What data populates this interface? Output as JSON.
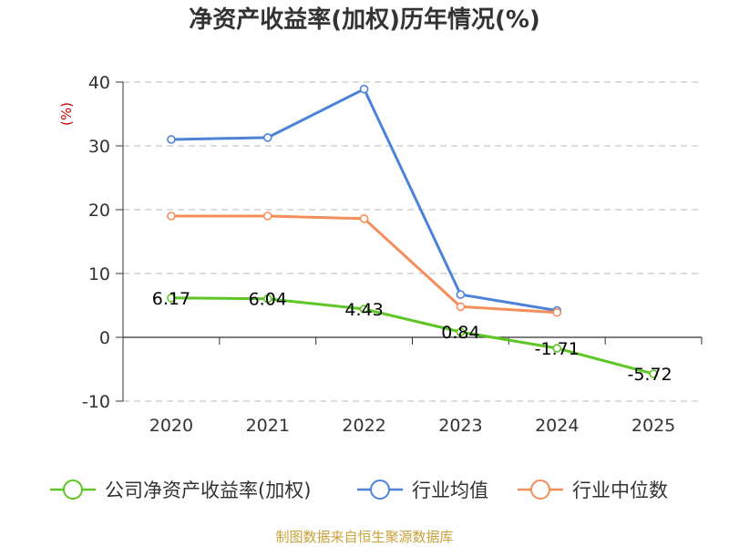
{
  "chart_data": {
    "type": "line",
    "title": "净资产收益率(加权)历年情况(%)",
    "ylabel": "(%)",
    "xlabel": "",
    "categories": [
      "2020",
      "2021",
      "2022",
      "2023",
      "2024",
      "2025"
    ],
    "ylim": [
      -10,
      40
    ],
    "yticks": [
      -10,
      0,
      10,
      20,
      30,
      40
    ],
    "grid": true,
    "legend_position": "bottom",
    "series": [
      {
        "name": "公司净资产收益率(加权)",
        "color": "#5ec624",
        "values": [
          6.17,
          6.04,
          4.43,
          0.84,
          -1.71,
          -5.72
        ],
        "labels": [
          "6.17",
          "6.04",
          "4.43",
          "0.84",
          "-1.71",
          "-5.72"
        ]
      },
      {
        "name": "行业均值",
        "color": "#4d82d9",
        "values": [
          31.0,
          31.3,
          38.9,
          6.7,
          4.2,
          null
        ]
      },
      {
        "name": "行业中位数",
        "color": "#f58d5b",
        "values": [
          19.0,
          19.0,
          18.6,
          4.8,
          3.9,
          null
        ]
      }
    ]
  },
  "source_text": "制图数据来自恒生聚源数据库"
}
